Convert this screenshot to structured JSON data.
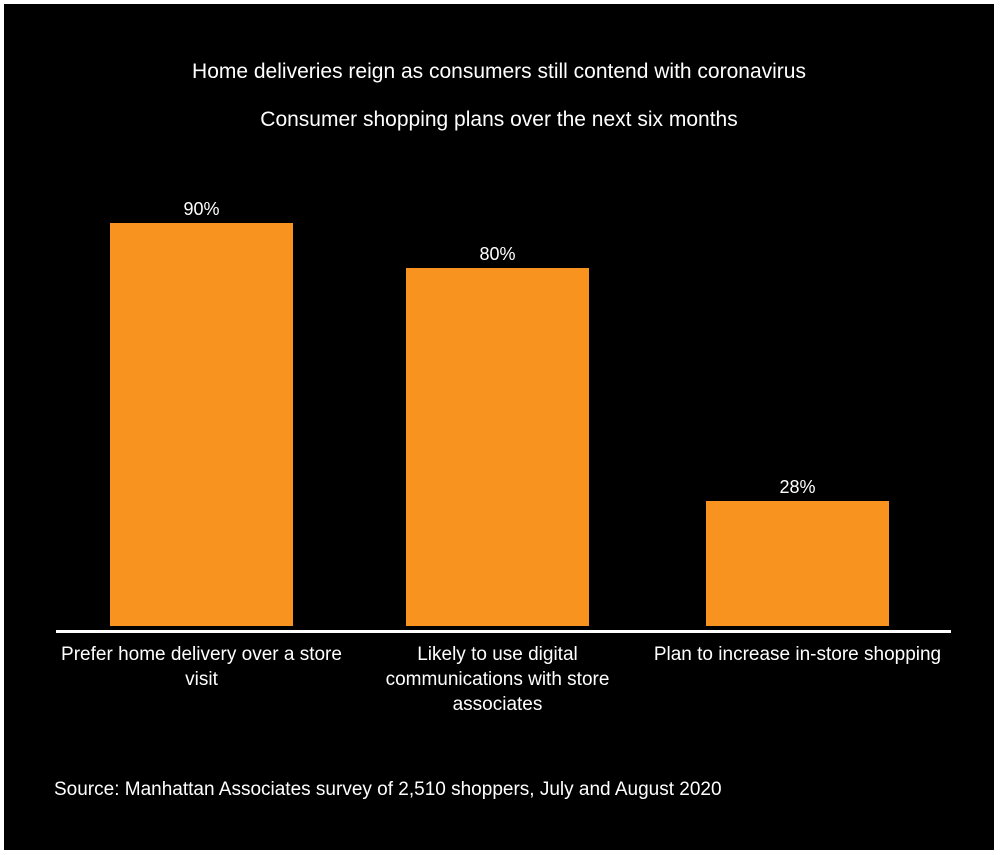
{
  "chart_data": {
    "type": "bar",
    "title": "Home deliveries reign as consumers still contend with coronavirus",
    "subtitle": "Consumer shopping plans over the next six months",
    "categories": [
      "Prefer home delivery over a store visit",
      "Likely to use digital communications with store associates",
      "Plan to increase in-store shopping"
    ],
    "values": [
      90,
      80,
      28
    ],
    "value_labels": [
      "90%",
      "80%",
      "28%"
    ],
    "unit": "%",
    "ylim": [
      0,
      100
    ],
    "grid": false,
    "legend": "none",
    "bar_color": "#F7931E",
    "background_color": "#000000",
    "text_color": "#FFFFFF"
  },
  "footer": {
    "source": "Source: Manhattan Associates survey of 2,510 shoppers, July and August 2020"
  }
}
